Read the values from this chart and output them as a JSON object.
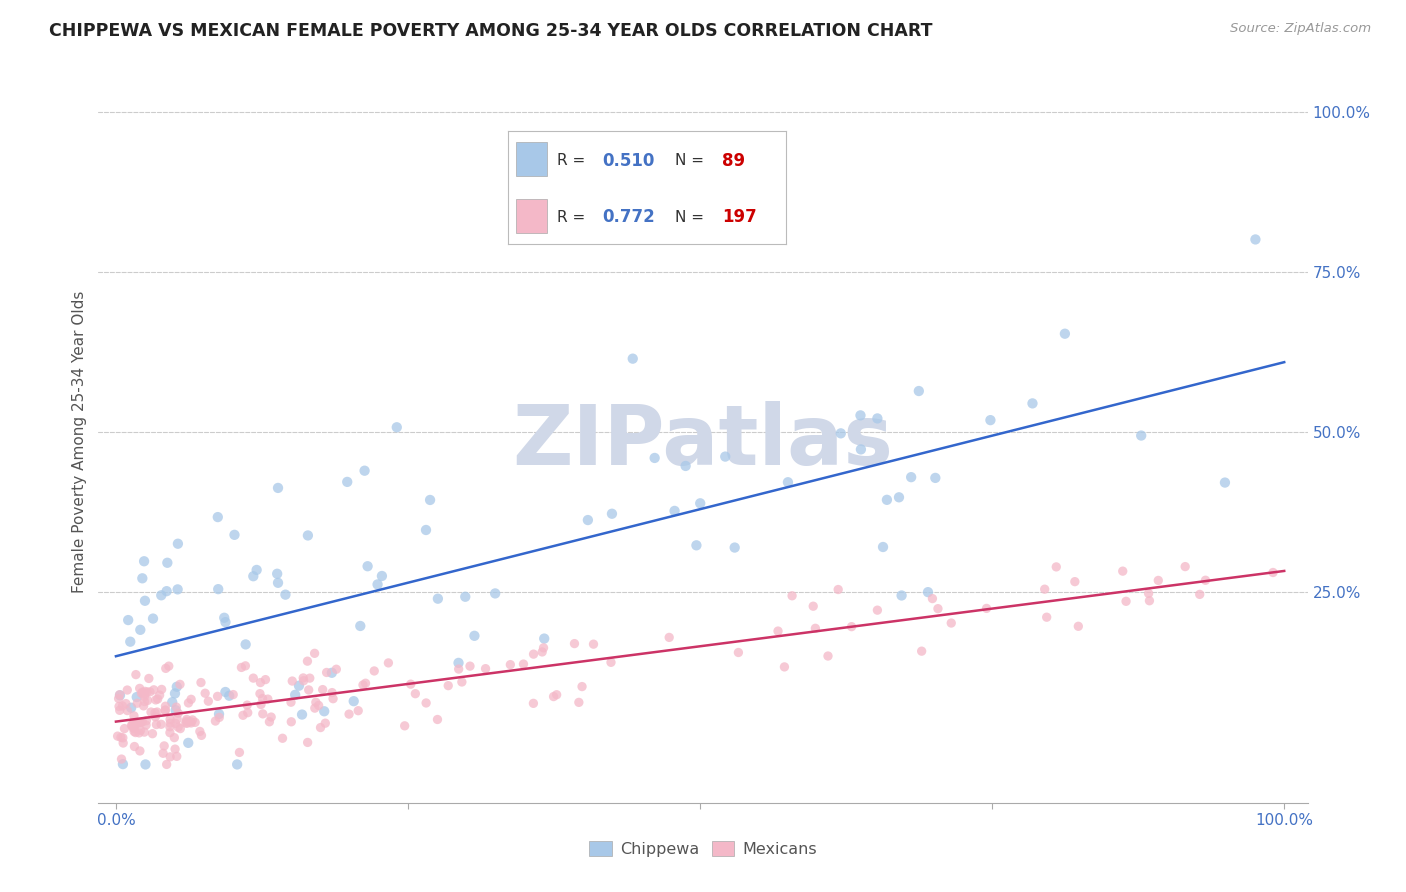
{
  "title": "CHIPPEWA VS MEXICAN FEMALE POVERTY AMONG 25-34 YEAR OLDS CORRELATION CHART",
  "source": "Source: ZipAtlas.com",
  "ylabel": "Female Poverty Among 25-34 Year Olds",
  "chippewa_R": 0.51,
  "chippewa_N": 89,
  "mexican_R": 0.772,
  "mexican_N": 197,
  "chippewa_color": "#a8c8e8",
  "mexican_color": "#f4b8c8",
  "chippewa_line_color": "#3366cc",
  "mexican_line_color": "#cc3366",
  "background_color": "#ffffff",
  "grid_color": "#cccccc",
  "title_color": "#222222",
  "axis_label_color": "#555555",
  "tick_label_color": "#4472c4",
  "legend_R_color": "#4472c4",
  "legend_N_color": "#cc0000",
  "legend_text_color": "#333333",
  "watermark_color": "#d0d8e8",
  "watermark_text": "ZIPatlas",
  "xlim": [
    0.0,
    1.0
  ],
  "ylim": [
    -0.08,
    1.05
  ],
  "ytick_vals": [
    0.25,
    0.5,
    0.75,
    1.0
  ],
  "ytick_labels": [
    "25.0%",
    "50.0%",
    "75.0%",
    "100.0%"
  ],
  "chippewa_seed": 101,
  "mexican_seed": 202
}
